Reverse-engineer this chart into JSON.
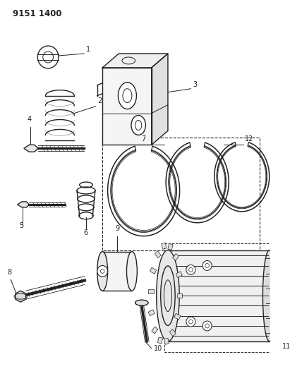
{
  "title_code": "9151 1400",
  "bg": "#ffffff",
  "lc": "#222222",
  "fig_w": 4.11,
  "fig_h": 5.33,
  "dpi": 100
}
